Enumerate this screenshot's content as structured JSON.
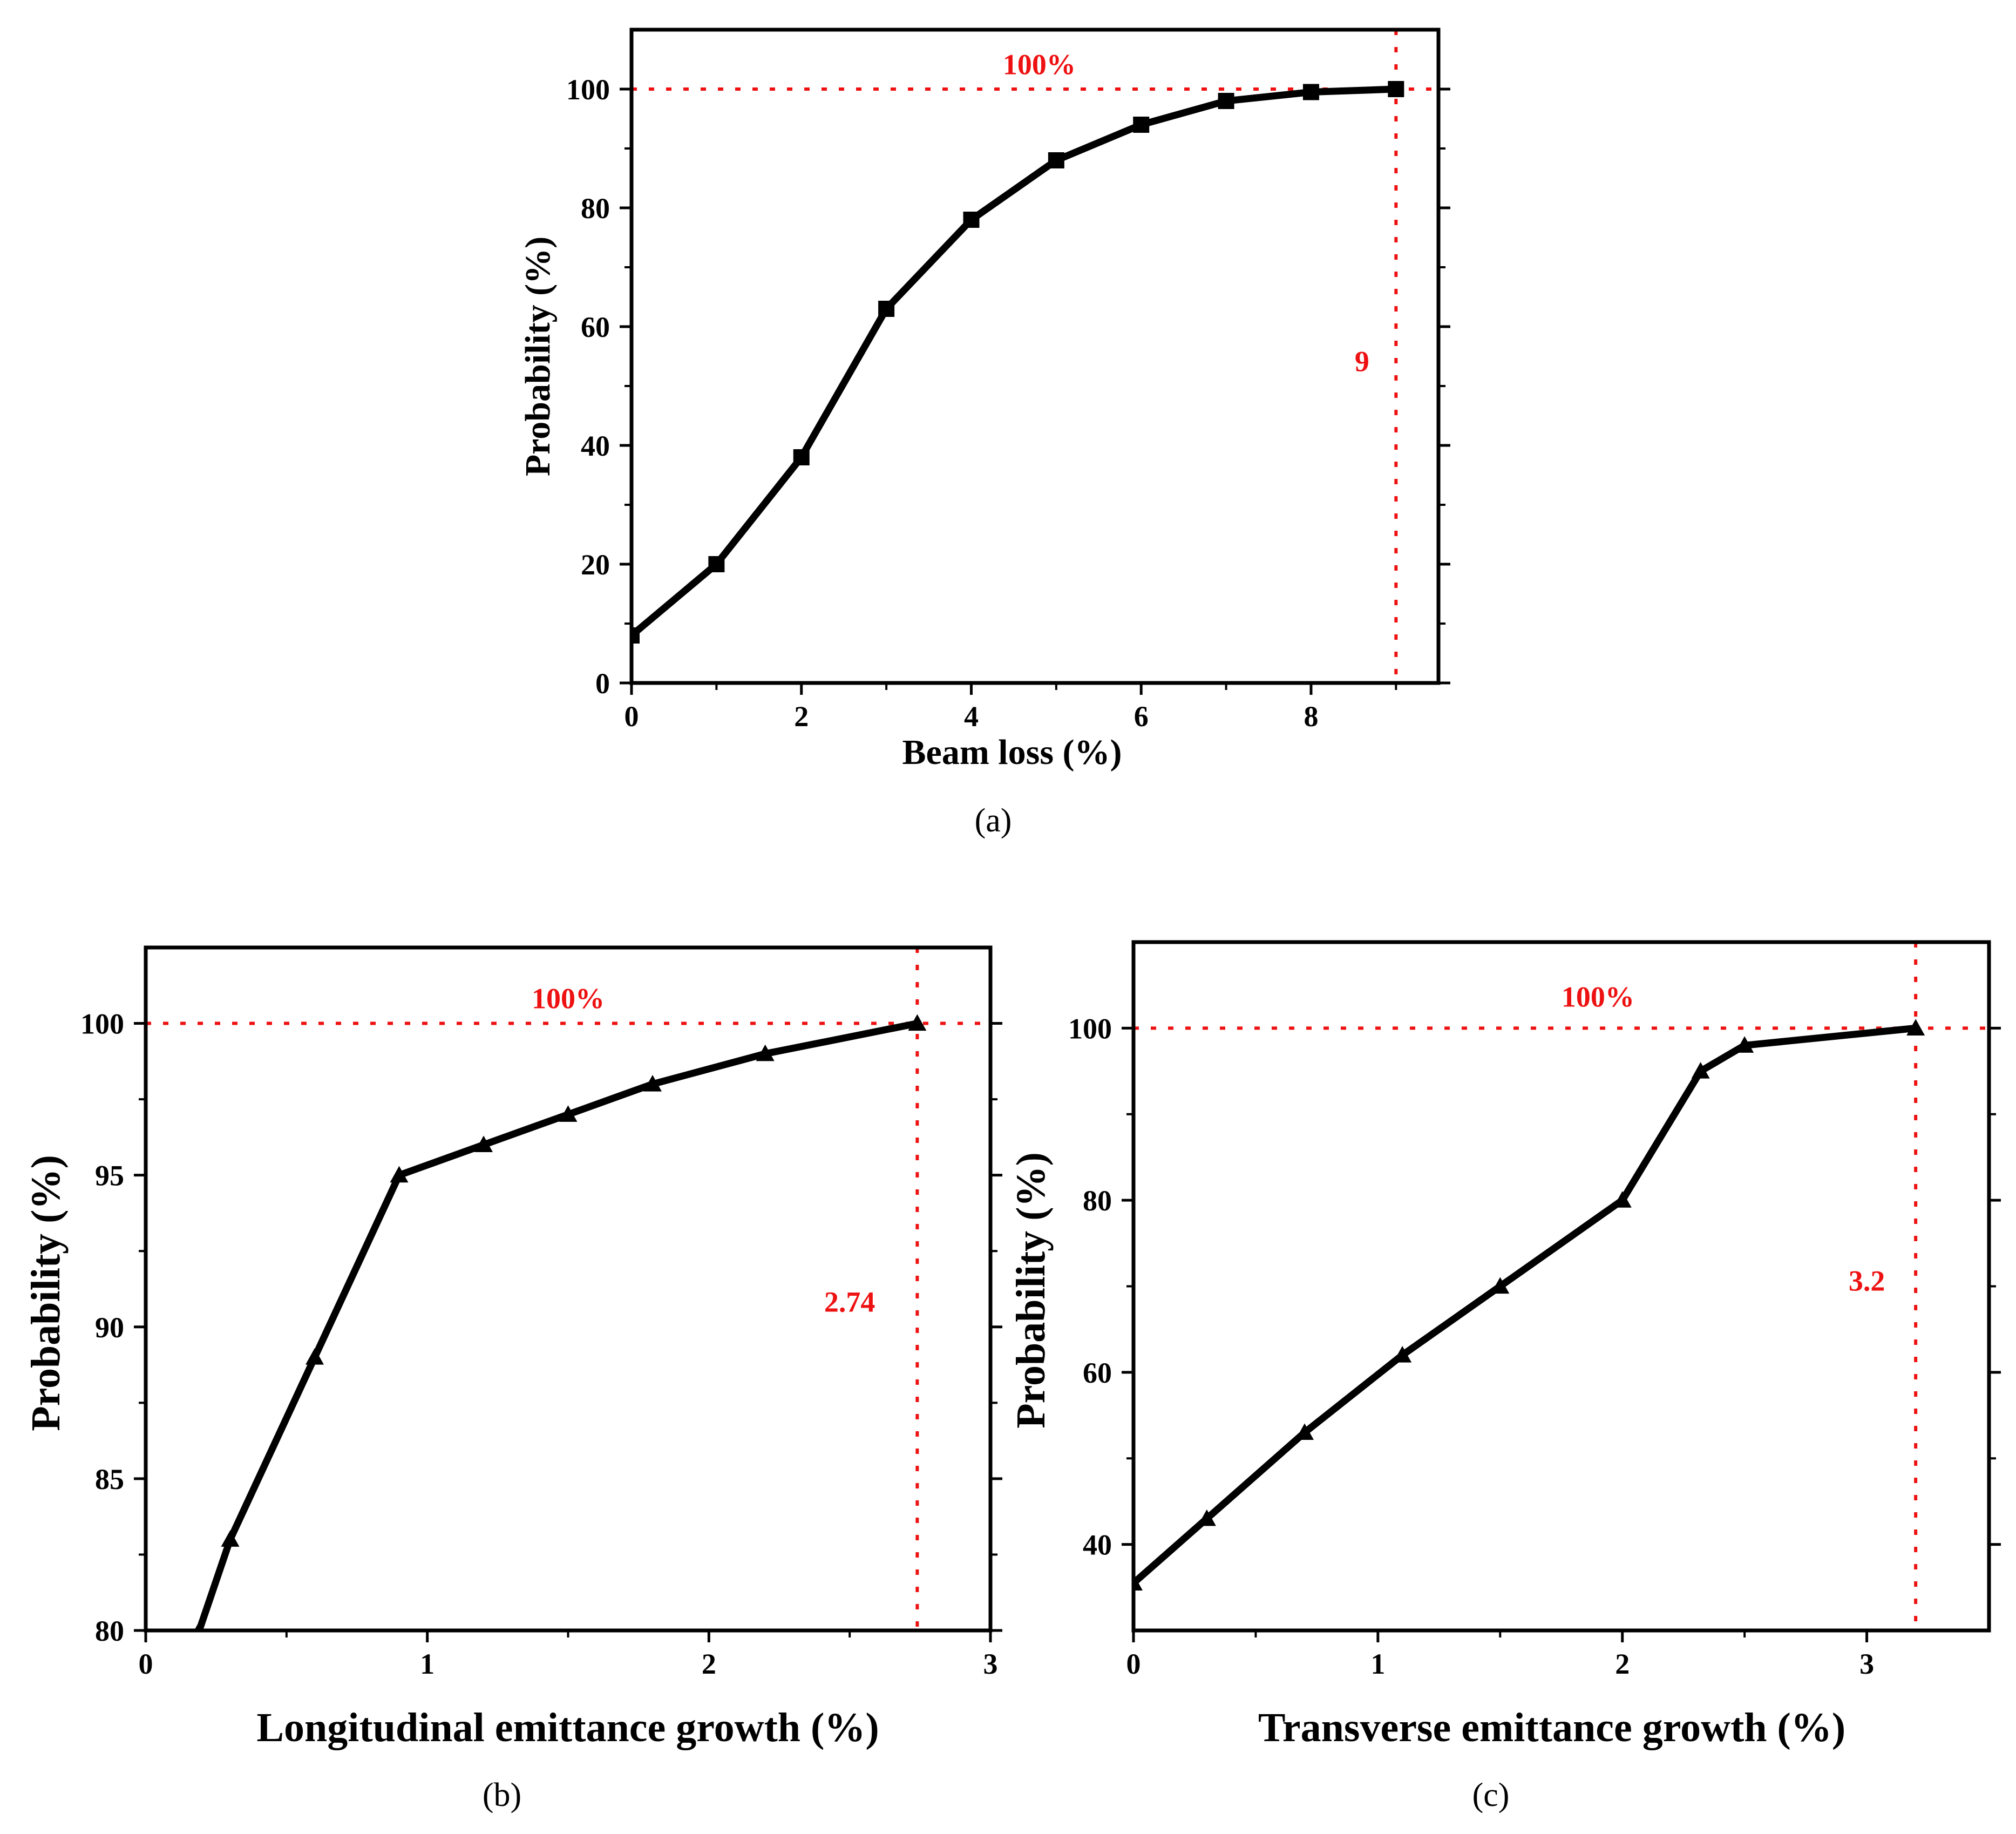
{
  "colors": {
    "series": "#000000",
    "reference": "#ee1111",
    "background": "#ffffff"
  },
  "chart_data": [
    {
      "type": "line",
      "panel_label": "(a)",
      "xlabel": "Beam loss (%)",
      "ylabel": "Probability (%)",
      "xlim": [
        0,
        9.5
      ],
      "ylim": [
        0,
        110
      ],
      "xticks": [
        0,
        2,
        4,
        6,
        8
      ],
      "yticks": [
        0,
        20,
        40,
        60,
        80,
        100
      ],
      "marker": "square",
      "grid": false,
      "legend": "none",
      "series": [
        {
          "x": [
            0,
            1,
            2,
            3,
            4,
            5,
            6,
            7,
            8,
            9
          ],
          "values": [
            8,
            20,
            38,
            63,
            78,
            88,
            94,
            98,
            99.5,
            100
          ]
        }
      ],
      "reference_lines": {
        "y": 100,
        "x": 9
      },
      "annotations": [
        {
          "text": "100%",
          "x": 4.8,
          "y": 102.5
        },
        {
          "text": "9",
          "x": 8.6,
          "y": 52.5
        }
      ]
    },
    {
      "type": "line",
      "panel_label": "(b)",
      "xlabel": "Longitudinal emittance growth (%)",
      "ylabel": "Probability (%)",
      "xlim": [
        0,
        3
      ],
      "ylim": [
        80,
        102.5
      ],
      "xticks": [
        0,
        1,
        2,
        3
      ],
      "yticks": [
        80,
        85,
        90,
        95,
        100
      ],
      "marker": "triangle",
      "grid": false,
      "legend": "none",
      "series": [
        {
          "x": [
            0.19,
            0.3,
            0.6,
            0.9,
            1.2,
            1.5,
            1.8,
            2.2,
            2.74
          ],
          "values": [
            80,
            83,
            89,
            95,
            96,
            97,
            98,
            99,
            100
          ]
        }
      ],
      "reference_lines": {
        "y": 100,
        "x": 2.74
      },
      "annotations": [
        {
          "text": "100%",
          "x": 1.5,
          "y": 100.5
        },
        {
          "text": "2.74",
          "x": 2.5,
          "y": 90.5
        }
      ]
    },
    {
      "type": "line",
      "panel_label": "(c)",
      "xlabel": "Transverse emittance growth (%)",
      "ylabel": "Probability (%)",
      "xlim": [
        0,
        3.5
      ],
      "ylim": [
        30,
        110
      ],
      "xticks": [
        0,
        1,
        2,
        3
      ],
      "yticks": [
        40,
        60,
        80,
        100
      ],
      "marker": "triangle",
      "grid": false,
      "legend": "none",
      "series": [
        {
          "x": [
            0,
            0.3,
            0.7,
            1.1,
            1.5,
            2.0,
            2.32,
            2.5,
            3.2
          ],
          "values": [
            35.5,
            43,
            53,
            62,
            70,
            80,
            95,
            98,
            100
          ]
        }
      ],
      "reference_lines": {
        "y": 100,
        "x": 3.2
      },
      "annotations": [
        {
          "text": "100%",
          "x": 1.9,
          "y": 102.5
        },
        {
          "text": "3.2",
          "x": 3.0,
          "y": 69.5
        }
      ]
    }
  ]
}
